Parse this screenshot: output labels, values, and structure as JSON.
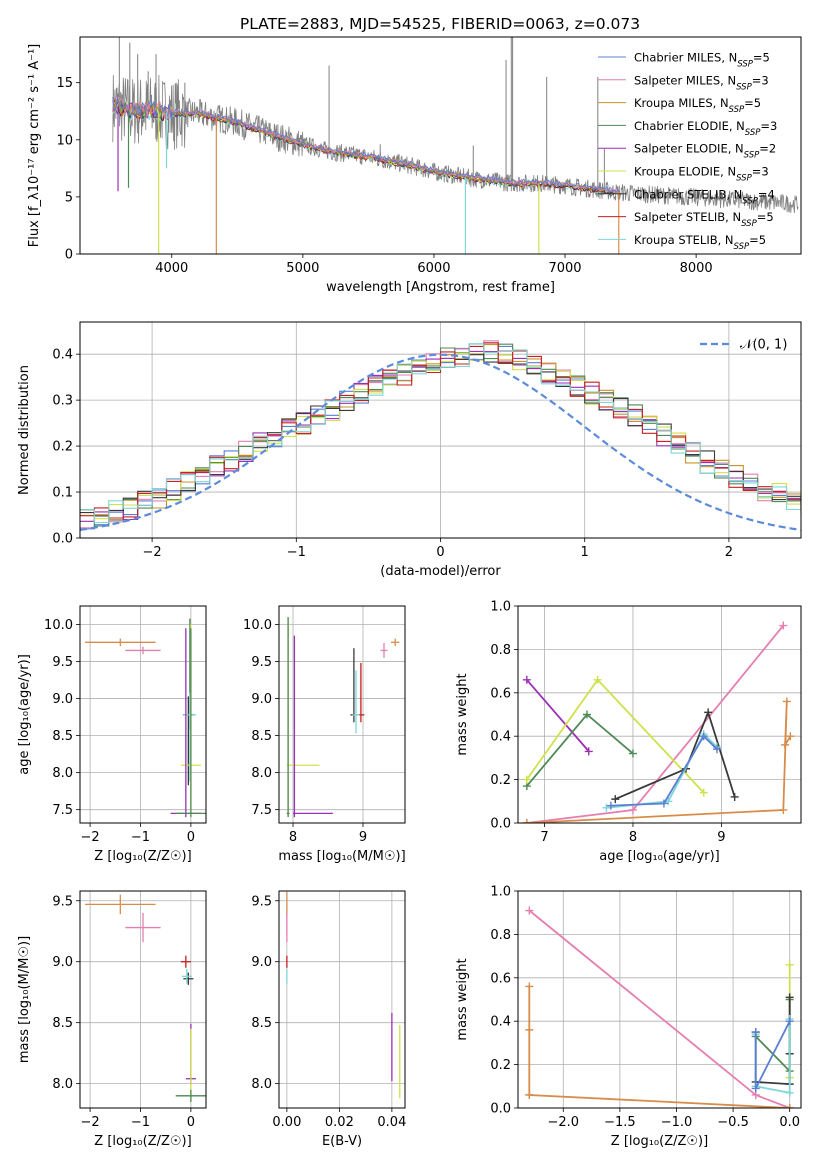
{
  "figure_title": "PLATE=2883, MJD=54525, FIBERID=0063, z=0.073",
  "colors": {
    "Chabrier MILES": "#5b7fd4",
    "Salpeter MILES": "#e57fb0",
    "Kroupa MILES": "#c9932b",
    "Chabrier ELODIE": "#4f8a55",
    "Salpeter ELODIE": "#9b2fb5",
    "Kroupa ELODIE": "#cfe14d",
    "Chabrier STELIB": "#3a3a3a",
    "Salpeter STELIB": "#c8201e",
    "Kroupa STELIB": "#7fd6d6",
    "spectrum_data": "#808080",
    "normal_curve": "#5b8bd9",
    "orange_track": "#d98c4a"
  },
  "chart_data": [
    {
      "id": "spectrum",
      "type": "line",
      "xlabel": "wavelength [Angstrom, rest frame]",
      "ylabel": "Flux [f_λ10⁻¹⁷ erg cm⁻² s⁻¹ A⁻¹]",
      "xlim": [
        3300,
        8800
      ],
      "ylim": [
        0,
        19
      ],
      "xticks": [
        4000,
        5000,
        6000,
        7000,
        8000
      ],
      "yticks": [
        0,
        5,
        10,
        15
      ],
      "grid": false,
      "legend_position": "top-right",
      "legend": [
        {
          "model": "Chabrier MILES",
          "n": "5"
        },
        {
          "model": "Salpeter MILES",
          "n": "3"
        },
        {
          "model": "Kroupa MILES",
          "n": "5"
        },
        {
          "model": "Chabrier ELODIE",
          "n": "3"
        },
        {
          "model": "Salpeter ELODIE",
          "n": "2"
        },
        {
          "model": "Kroupa ELODIE",
          "n": "3"
        },
        {
          "model": "Chabrier STELIB",
          "n": "4"
        },
        {
          "model": "Salpeter STELIB",
          "n": "5"
        },
        {
          "model": "Kroupa STELIB",
          "n": "5"
        }
      ],
      "continuum": {
        "x": [
          3550,
          3700,
          3850,
          4000,
          4200,
          4500,
          4800,
          5000,
          5200,
          5500,
          5800,
          6000,
          6300,
          6600,
          6800,
          7000,
          7200,
          7400
        ],
        "y": [
          13.0,
          12.5,
          12.6,
          12.3,
          12.3,
          11.5,
          10.3,
          9.6,
          9.0,
          8.5,
          7.8,
          7.2,
          6.6,
          6.2,
          6.2,
          6.0,
          5.7,
          5.4
        ]
      },
      "spikes": [
        {
          "x": 3600,
          "y": 19
        },
        {
          "x": 3680,
          "y": 18.5
        },
        {
          "x": 3740,
          "y": 17.5
        },
        {
          "x": 3820,
          "y": 16
        },
        {
          "x": 3880,
          "y": 17.5
        },
        {
          "x": 4100,
          "y": 15
        },
        {
          "x": 5200,
          "y": 16.5
        },
        {
          "x": 5590,
          "y": 9.6
        },
        {
          "x": 6300,
          "y": 9.5
        },
        {
          "x": 6550,
          "y": 17
        },
        {
          "x": 6590,
          "y": 19
        },
        {
          "x": 6600,
          "y": 19
        },
        {
          "x": 6860,
          "y": 15.5
        },
        {
          "x": 7250,
          "y": 15.5
        },
        {
          "x": 7300,
          "y": 9.2
        }
      ],
      "dips": [
        {
          "x": 3900,
          "y": 0,
          "color": "#cfe14d"
        },
        {
          "x": 3960,
          "y": 7.5,
          "color": "#7fd6d6"
        },
        {
          "x": 4340,
          "y": 0,
          "color": "#d98c4a"
        },
        {
          "x": 6240,
          "y": 0,
          "color": "#7fd6d6"
        },
        {
          "x": 6800,
          "y": 0,
          "color": "#cfe14d"
        },
        {
          "x": 7410,
          "y": 0,
          "color": "#d98c4a"
        },
        {
          "x": 3590,
          "y": 5.5,
          "color": "#9b2fb5"
        },
        {
          "x": 3670,
          "y": 5.8,
          "color": "#4f8a55"
        }
      ]
    },
    {
      "id": "residual_hist",
      "type": "bar",
      "xlabel": "(data-model)/error",
      "ylabel": "Normed distribution",
      "xlim": [
        -2.5,
        2.5
      ],
      "ylim": [
        0,
        0.47
      ],
      "xticks": [
        -2,
        -1,
        0,
        1,
        2
      ],
      "yticks": [
        0.0,
        0.1,
        0.2,
        0.3,
        0.4
      ],
      "grid": true,
      "legend_position": "top-right",
      "legend_label": "𝒩(0, 1)",
      "bin_width": 0.1,
      "bin_start": -2.5,
      "base_density": [
        0.045,
        0.05,
        0.06,
        0.065,
        0.08,
        0.09,
        0.105,
        0.125,
        0.14,
        0.155,
        0.17,
        0.19,
        0.205,
        0.22,
        0.235,
        0.25,
        0.265,
        0.28,
        0.3,
        0.315,
        0.33,
        0.345,
        0.355,
        0.37,
        0.38,
        0.39,
        0.395,
        0.4,
        0.405,
        0.405,
        0.39,
        0.375,
        0.36,
        0.345,
        0.33,
        0.315,
        0.3,
        0.285,
        0.265,
        0.245,
        0.225,
        0.205,
        0.185,
        0.165,
        0.15,
        0.135,
        0.12,
        0.105,
        0.095,
        0.085,
        0.075,
        0.068,
        0.06,
        0.055,
        0.05,
        0.045,
        0.04,
        0.035,
        0.03,
        0.025
      ]
    },
    {
      "id": "age_vs_z",
      "type": "scatter",
      "xlabel": "Z [log₁₀(Z/Z☉)]",
      "ylabel": "age  [log₁₀(age/yr)]",
      "xlim": [
        -2.2,
        0.3
      ],
      "ylim": [
        7.32,
        10.25
      ],
      "xticks": [
        -2,
        -1,
        0
      ],
      "yticks": [
        7.5,
        8.0,
        8.5,
        9.0,
        9.5,
        10.0
      ],
      "grid": true,
      "points": [
        {
          "x": -1.4,
          "y": 9.76,
          "xerr": [
            0.7,
            0.7
          ],
          "yerr": [
            0.05,
            0.05
          ],
          "color": "#d98c4a"
        },
        {
          "x": -0.95,
          "y": 9.65,
          "xerr": [
            0.35,
            0.35
          ],
          "yerr": [
            0.05,
            0.05
          ],
          "color": "#e57fb0"
        },
        {
          "x": -0.05,
          "y": 8.78,
          "xerr": [
            0.1,
            0.1
          ],
          "yerr": [
            0.95,
            0.25
          ],
          "color": "#3a3a3a"
        },
        {
          "x": -0.02,
          "y": 8.78,
          "xerr": [
            0.1,
            0.1
          ],
          "yerr": [
            0.2,
            1.3
          ],
          "color": "#4f8a55"
        },
        {
          "x": -0.02,
          "y": 8.78,
          "xerr": [
            0.12,
            0.12
          ],
          "yerr": [
            0.9,
            0.3
          ],
          "color": "#7fd6d6"
        },
        {
          "x": 0.0,
          "y": 8.1,
          "xerr": [
            0.2,
            0.2
          ],
          "yerr": [
            0.65,
            1.9
          ],
          "color": "#cfe14d"
        },
        {
          "x": -0.1,
          "y": 7.45,
          "xerr": [
            0.3,
            0.3
          ],
          "yerr": [
            0.05,
            2.5
          ],
          "color": "#9b2fb5"
        },
        {
          "x": 0.0,
          "y": 7.45,
          "xerr": [
            0.3,
            0.3
          ],
          "yerr": [
            0.05,
            2.5
          ],
          "color": "#4f8a55"
        }
      ]
    },
    {
      "id": "age_vs_mass",
      "type": "scatter",
      "xlabel": "mass [log₁₀(M/M☉)]",
      "ylabel": "",
      "xlim": [
        7.8,
        9.6
      ],
      "ylim": [
        7.32,
        10.25
      ],
      "xticks": [
        8,
        9
      ],
      "yticks": [
        7.5,
        8.0,
        8.5,
        9.0,
        9.5,
        10.0
      ],
      "grid": true,
      "points": [
        {
          "x": 9.46,
          "y": 9.76,
          "xerr": [
            0.06,
            0.06
          ],
          "yerr": [
            0.05,
            0.05
          ],
          "color": "#d98c4a"
        },
        {
          "x": 9.3,
          "y": 9.65,
          "xerr": [
            0.05,
            0.05
          ],
          "yerr": [
            0.1,
            0.1
          ],
          "color": "#e57fb0"
        },
        {
          "x": 8.97,
          "y": 8.78,
          "xerr": [
            0.05,
            0.05
          ],
          "yerr": [
            0.1,
            0.7
          ],
          "color": "#c8201e"
        },
        {
          "x": 8.87,
          "y": 8.78,
          "xerr": [
            0.05,
            0.05
          ],
          "yerr": [
            0.1,
            0.9
          ],
          "color": "#3a3a3a"
        },
        {
          "x": 8.9,
          "y": 8.78,
          "xerr": [
            0.05,
            0.05
          ],
          "yerr": [
            0.25,
            0.6
          ],
          "color": "#7fd6d6"
        },
        {
          "x": 7.93,
          "y": 8.1,
          "xerr": [
            0.02,
            0.45
          ],
          "yerr": [
            0.7,
            2.0
          ],
          "color": "#cfe14d"
        },
        {
          "x": 8.02,
          "y": 7.45,
          "xerr": [
            0.02,
            0.55
          ],
          "yerr": [
            0.05,
            2.4
          ],
          "color": "#9b2fb5"
        },
        {
          "x": 7.93,
          "y": 7.45,
          "xerr": [
            0.02,
            0.02
          ],
          "yerr": [
            0.05,
            2.65
          ],
          "color": "#4f8a55"
        }
      ]
    },
    {
      "id": "weight_vs_age",
      "type": "line",
      "xlabel": "age  [log₁₀(age/yr)]",
      "ylabel": "mass weight",
      "xlim": [
        6.7,
        9.9
      ],
      "ylim": [
        0.0,
        1.0
      ],
      "xticks": [
        7,
        8,
        9
      ],
      "yticks": [
        0.0,
        0.2,
        0.4,
        0.6,
        0.8,
        1.0
      ],
      "grid": true,
      "series": [
        {
          "model": "Salpeter MILES",
          "color": "#e57fb0",
          "x": [
            6.8,
            8.0,
            9.7
          ],
          "y": [
            0.0,
            0.06,
            0.91
          ]
        },
        {
          "model": "Salpeter ELODIE",
          "color": "#9b2fb5",
          "x": [
            6.8,
            7.5
          ],
          "y": [
            0.66,
            0.33
          ]
        },
        {
          "model": "Chabrier ELODIE",
          "color": "#4f8a55",
          "x": [
            6.8,
            7.48,
            8.0
          ],
          "y": [
            0.17,
            0.5,
            0.32
          ]
        },
        {
          "model": "Kroupa ELODIE",
          "color": "#cfe14d",
          "x": [
            6.8,
            7.6,
            8.8
          ],
          "y": [
            0.2,
            0.66,
            0.14
          ]
        },
        {
          "model": "Chabrier STELIB",
          "color": "#3a3a3a",
          "x": [
            7.8,
            8.6,
            8.85,
            9.15
          ],
          "y": [
            0.11,
            0.25,
            0.51,
            0.12
          ]
        },
        {
          "model": "Kroupa STELIB",
          "color": "#7fd6d6",
          "x": [
            7.7,
            8.4,
            8.8,
            8.95
          ],
          "y": [
            0.07,
            0.1,
            0.41,
            0.35
          ]
        },
        {
          "model": "Chabrier MILES",
          "color": "#5b7fd4",
          "x": [
            7.75,
            8.35,
            8.8,
            8.95
          ],
          "y": [
            0.08,
            0.09,
            0.4,
            0.34
          ]
        },
        {
          "model": "Kroupa MILES",
          "color": "#d98c4a",
          "x": [
            6.8,
            9.7,
            9.74,
            9.72,
            9.78
          ],
          "y": [
            0.0,
            0.06,
            0.56,
            0.36,
            0.4
          ]
        }
      ]
    },
    {
      "id": "mass_vs_z",
      "type": "scatter",
      "xlabel": "Z [log₁₀(Z/Z☉)]",
      "ylabel": "mass [log₁₀(M/M☉)]",
      "xlim": [
        -2.2,
        0.3
      ],
      "ylim": [
        7.8,
        9.58
      ],
      "xticks": [
        -2,
        -1,
        0
      ],
      "yticks": [
        8.0,
        8.5,
        9.0,
        9.5
      ],
      "grid": true,
      "points": [
        {
          "x": -1.4,
          "y": 9.47,
          "xerr": [
            0.7,
            0.7
          ],
          "yerr": [
            0.08,
            0.08
          ],
          "color": "#d98c4a"
        },
        {
          "x": -0.95,
          "y": 9.28,
          "xerr": [
            0.35,
            0.35
          ],
          "yerr": [
            0.12,
            0.12
          ],
          "color": "#e57fb0"
        },
        {
          "x": -0.1,
          "y": 9.0,
          "xerr": [
            0.1,
            0.1
          ],
          "yerr": [
            0.05,
            0.05
          ],
          "color": "#c8201e"
        },
        {
          "x": -0.05,
          "y": 8.86,
          "xerr": [
            0.1,
            0.1
          ],
          "yerr": [
            0.05,
            0.05
          ],
          "color": "#3a3a3a"
        },
        {
          "x": -0.08,
          "y": 8.88,
          "xerr": [
            0.1,
            0.1
          ],
          "yerr": [
            0.06,
            0.06
          ],
          "color": "#7fd6d6"
        },
        {
          "x": 0.0,
          "y": 8.04,
          "xerr": [
            0.1,
            0.1
          ],
          "yerr": [
            0.05,
            0.45
          ],
          "color": "#9b2fb5"
        },
        {
          "x": 0.0,
          "y": 7.9,
          "xerr": [
            0.3,
            0.3
          ],
          "yerr": [
            0.05,
            0.55
          ],
          "color": "#cfe14d"
        },
        {
          "x": 0.0,
          "y": 7.9,
          "xerr": [
            0.3,
            0.3
          ],
          "yerr": [
            0.05,
            0.05
          ],
          "color": "#4f8a55"
        }
      ]
    },
    {
      "id": "mass_vs_ebv",
      "type": "scatter",
      "xlabel": "E(B-V)",
      "ylabel": "",
      "xlim": [
        -0.003,
        0.045
      ],
      "ylim": [
        7.8,
        9.58
      ],
      "xticks": [
        0.0,
        0.02,
        0.04
      ],
      "yticks": [
        8.0,
        8.5,
        9.0,
        9.5
      ],
      "grid": true,
      "points": [
        {
          "x": 0.0,
          "y": 9.47,
          "xerr": [
            0,
            0
          ],
          "yerr": [
            0.1,
            0.1
          ],
          "color": "#d98c4a"
        },
        {
          "x": 0.0,
          "y": 9.28,
          "xerr": [
            0,
            0
          ],
          "yerr": [
            0.12,
            0.12
          ],
          "color": "#e57fb0"
        },
        {
          "x": 0.0,
          "y": 9.0,
          "xerr": [
            0,
            0
          ],
          "yerr": [
            0.05,
            0.05
          ],
          "color": "#c8201e"
        },
        {
          "x": 0.0,
          "y": 8.88,
          "xerr": [
            0,
            0
          ],
          "yerr": [
            0.06,
            0.06
          ],
          "color": "#7fd6d6"
        },
        {
          "x": 0.04,
          "y": 8.3,
          "xerr": [
            0,
            0
          ],
          "yerr": [
            0.28,
            0.28
          ],
          "color": "#9b2fb5"
        },
        {
          "x": 0.043,
          "y": 8.18,
          "xerr": [
            0,
            0
          ],
          "yerr": [
            0.3,
            0.3
          ],
          "color": "#cfe14d"
        }
      ]
    },
    {
      "id": "weight_vs_z",
      "type": "line",
      "xlabel": "Z [log₁₀(Z/Z☉)]",
      "ylabel": "mass weight",
      "xlim": [
        -2.4,
        0.1
      ],
      "ylim": [
        0.0,
        1.0
      ],
      "xticks": [
        -2.0,
        -1.5,
        -1.0,
        -0.5,
        0.0
      ],
      "yticks": [
        0.0,
        0.2,
        0.4,
        0.6,
        0.8,
        1.0
      ],
      "grid": true,
      "series": [
        {
          "model": "Salpeter MILES",
          "color": "#e57fb0",
          "x": [
            -2.3,
            -0.3,
            0.0
          ],
          "y": [
            0.91,
            0.06,
            0.0
          ]
        },
        {
          "model": "Kroupa MILES",
          "color": "#d98c4a",
          "x": [
            -2.3,
            -2.3,
            -2.3,
            -2.3,
            0.0
          ],
          "y": [
            0.06,
            0.56,
            0.36,
            0.06,
            0.0
          ]
        },
        {
          "model": "Chabrier ELODIE",
          "color": "#4f8a55",
          "x": [
            -0.3,
            0.0,
            0.0
          ],
          "y": [
            0.33,
            0.17,
            0.5
          ]
        },
        {
          "model": "Kroupa ELODIE",
          "color": "#cfe14d",
          "x": [
            0.0,
            0.0
          ],
          "y": [
            0.14,
            0.66
          ]
        },
        {
          "model": "Chabrier STELIB",
          "color": "#3a3a3a",
          "x": [
            -0.3,
            -0.3,
            0.0,
            0.0,
            0.0
          ],
          "y": [
            0.35,
            0.12,
            0.11,
            0.25,
            0.51
          ]
        },
        {
          "model": "Kroupa STELIB",
          "color": "#7fd6d6",
          "x": [
            -0.3,
            -0.3,
            0.0,
            0.0
          ],
          "y": [
            0.34,
            0.1,
            0.07,
            0.41
          ]
        },
        {
          "model": "Chabrier MILES",
          "color": "#5b7fd4",
          "x": [
            -0.3,
            -0.3,
            0.0
          ],
          "y": [
            0.35,
            0.09,
            0.4
          ]
        }
      ]
    }
  ]
}
